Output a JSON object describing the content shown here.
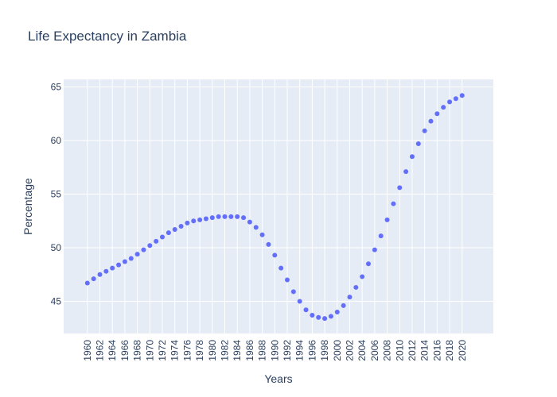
{
  "chart_data": {
    "type": "scatter",
    "title": "Life Expectancy in Zambia",
    "x_label": "Years",
    "y_label": "Percentage",
    "x": [
      1960,
      1961,
      1962,
      1963,
      1964,
      1965,
      1966,
      1967,
      1968,
      1969,
      1970,
      1971,
      1972,
      1973,
      1974,
      1975,
      1976,
      1977,
      1978,
      1979,
      1980,
      1981,
      1982,
      1983,
      1984,
      1985,
      1986,
      1987,
      1988,
      1989,
      1990,
      1991,
      1992,
      1993,
      1994,
      1995,
      1996,
      1997,
      1998,
      1999,
      2000,
      2001,
      2002,
      2003,
      2004,
      2005,
      2006,
      2007,
      2008,
      2009,
      2010,
      2011,
      2012,
      2013,
      2014,
      2015,
      2016,
      2017,
      2018,
      2019,
      2020
    ],
    "values": [
      46.7,
      47.1,
      47.5,
      47.8,
      48.1,
      48.4,
      48.7,
      49.0,
      49.4,
      49.8,
      50.2,
      50.6,
      51.0,
      51.4,
      51.7,
      52.0,
      52.3,
      52.5,
      52.6,
      52.7,
      52.8,
      52.9,
      52.9,
      52.9,
      52.9,
      52.8,
      52.4,
      51.9,
      51.2,
      50.3,
      49.3,
      48.1,
      47.0,
      45.9,
      45.0,
      44.2,
      43.7,
      43.5,
      43.4,
      43.6,
      44.0,
      44.6,
      45.4,
      46.3,
      47.3,
      48.5,
      49.8,
      51.1,
      52.6,
      54.1,
      55.6,
      57.1,
      58.5,
      59.7,
      60.9,
      61.8,
      62.5,
      63.1,
      63.6,
      63.9,
      64.2
    ],
    "color": "#636efa",
    "xlim": [
      1956.2,
      2025
    ],
    "ylim": [
      42,
      65.7
    ],
    "xticks": [
      1960,
      1962,
      1964,
      1966,
      1968,
      1970,
      1972,
      1974,
      1976,
      1978,
      1980,
      1982,
      1984,
      1986,
      1988,
      1990,
      1992,
      1994,
      1996,
      1998,
      2000,
      2002,
      2004,
      2006,
      2008,
      2010,
      2012,
      2014,
      2016,
      2018,
      2020
    ],
    "yticks": [
      45,
      50,
      55,
      60,
      65
    ],
    "grid": true
  }
}
